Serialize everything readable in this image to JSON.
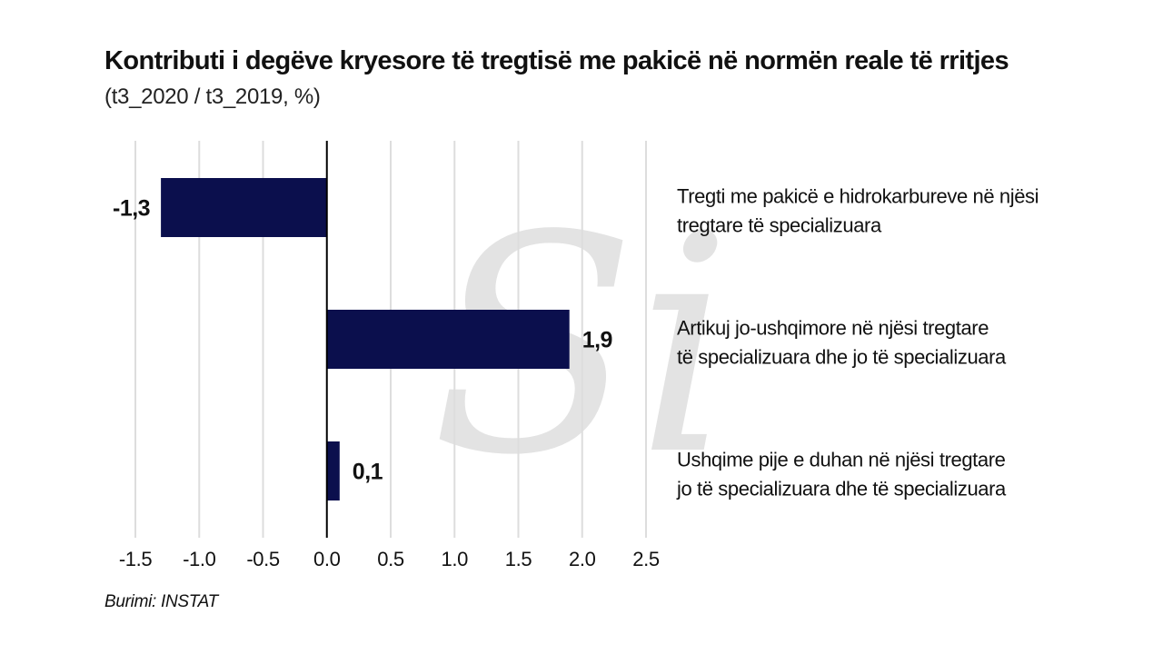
{
  "title": {
    "main": "Kontributi i degëve kryesore të tregtisë me pakicë në normën reale të rritjes",
    "subtitle": "(t3_2020 / t3_2019, %)"
  },
  "watermark": "Si",
  "source": "Burimi: INSTAT",
  "chart_data": {
    "type": "bar",
    "orientation": "horizontal",
    "categories": [
      "Tregti me pakicë e hidrokarbureve në njësi tregtare të specializuara",
      "Artikuj jo-ushqimore në njësi tregtare të specializuara dhe jo të specializuara",
      "Ushqime pije e duhan në njësi tregtare jo të specializuara dhe të specializuara"
    ],
    "category_lines": [
      [
        "Tregti me pakicë e hidrokarbureve në njësi",
        "tregtare të specializuara"
      ],
      [
        "Artikuj jo-ushqimore në njësi tregtare",
        "të specializuara dhe jo të specializuara"
      ],
      [
        "Ushqime pije e duhan në njësi tregtare",
        "jo të specializuara dhe të specializuara"
      ]
    ],
    "values": [
      -1.3,
      1.9,
      0.1
    ],
    "value_labels": [
      "-1,3",
      "1,9",
      "0,1"
    ],
    "xlim": [
      -1.5,
      2.5
    ],
    "xticks": [
      -1.5,
      -1.0,
      -0.5,
      0.0,
      0.5,
      1.0,
      1.5,
      2.0,
      2.5
    ],
    "xtick_labels": [
      "-1.5",
      "-1.0",
      "-0.5",
      "0.0",
      "0.5",
      "1.0",
      "1.5",
      "2.0",
      "2.5"
    ],
    "grid": true,
    "bar_color": "#0b0f4d",
    "grid_color": "#dddddd",
    "legend_position": "right"
  }
}
